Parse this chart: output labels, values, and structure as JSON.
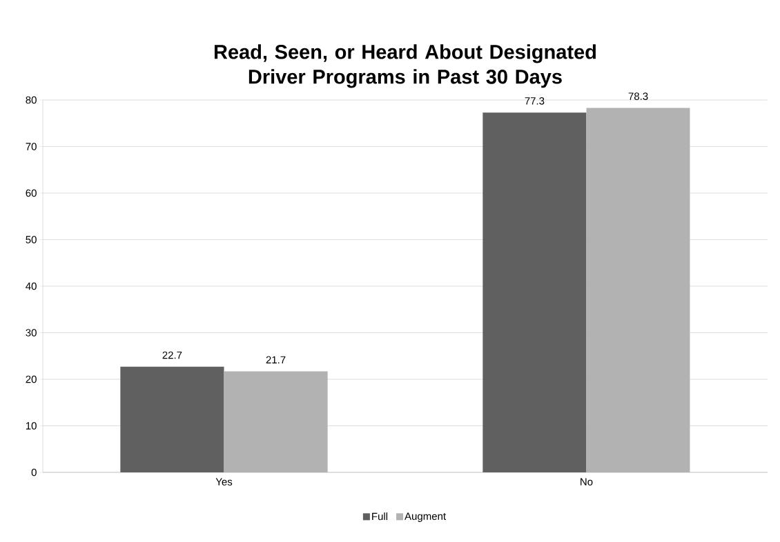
{
  "chart_data": {
    "type": "bar",
    "title": "Read, Seen, or Heard About Designated Driver Programs in Past 30 Days",
    "categories": [
      "Yes",
      "No"
    ],
    "series": [
      {
        "name": "Full",
        "color": "#606060",
        "values": [
          22.7,
          77.3
        ]
      },
      {
        "name": "Augment",
        "color": "#b2b2b2",
        "values": [
          21.7,
          78.3
        ]
      }
    ],
    "ylim": [
      0,
      80
    ],
    "yticks": [
      0,
      10,
      20,
      30,
      40,
      50,
      60,
      70,
      80
    ],
    "grid": "y",
    "legend": "bottom",
    "data_labels": true
  }
}
